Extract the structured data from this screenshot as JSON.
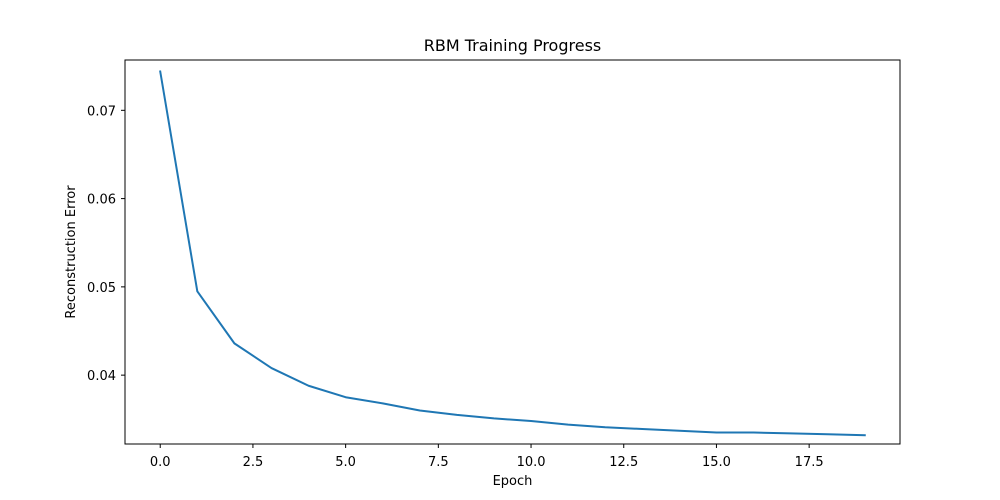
{
  "chart_data": {
    "type": "line",
    "title": "RBM Training Progress",
    "xlabel": "Epoch",
    "ylabel": "Reconstruction Error",
    "xlim": [
      -0.95,
      19.95
    ],
    "ylim": [
      0.0322,
      0.0757
    ],
    "xticks": [
      0.0,
      2.5,
      5.0,
      7.5,
      10.0,
      12.5,
      15.0,
      17.5
    ],
    "xtick_labels": [
      "0.0",
      "2.5",
      "5.0",
      "7.5",
      "10.0",
      "12.5",
      "15.0",
      "17.5"
    ],
    "yticks": [
      0.04,
      0.05,
      0.06,
      0.07
    ],
    "ytick_labels": [
      "0.04",
      "0.05",
      "0.06",
      "0.07"
    ],
    "grid": false,
    "series": [
      {
        "color": "#1f77b4",
        "x": [
          0,
          1,
          2,
          3,
          4,
          5,
          6,
          7,
          8,
          9,
          10,
          11,
          12,
          13,
          14,
          15,
          16,
          17,
          18,
          19
        ],
        "y": [
          0.0744,
          0.0495,
          0.0436,
          0.0408,
          0.0388,
          0.0375,
          0.0368,
          0.036,
          0.0355,
          0.0351,
          0.0348,
          0.0344,
          0.0341,
          0.0339,
          0.0337,
          0.0335,
          0.0335,
          0.0334,
          0.0333,
          0.0332
        ]
      }
    ]
  }
}
